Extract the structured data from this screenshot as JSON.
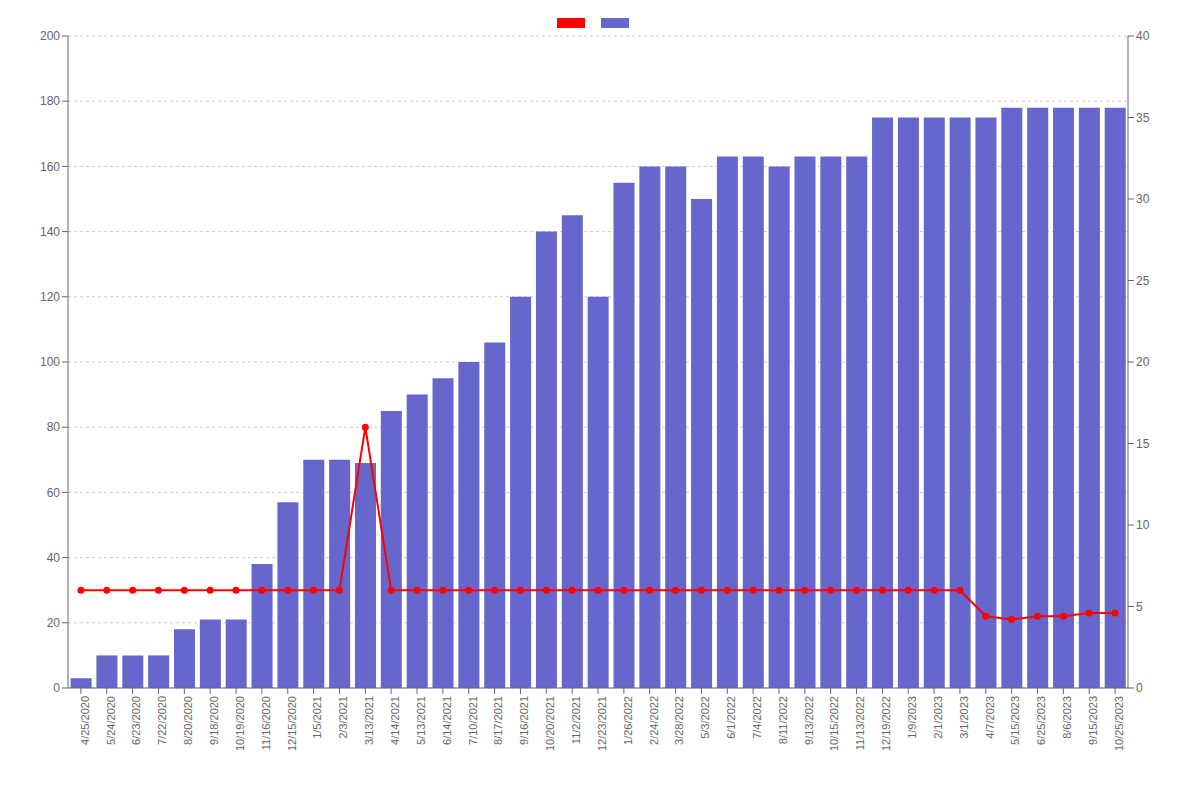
{
  "chart_data": {
    "type": "bar",
    "categories": [
      "4/25/2020",
      "5/24/2020",
      "6/23/2020",
      "7/22/2020",
      "8/20/2020",
      "9/18/2020",
      "10/19/2020",
      "11/16/2020",
      "12/15/2020",
      "1/5/2021",
      "2/3/2021",
      "3/13/2021",
      "4/14/2021",
      "5/13/2021",
      "6/14/2021",
      "7/10/2021",
      "8/17/2021",
      "9/16/2021",
      "10/20/2021",
      "11/2/2021",
      "12/23/2021",
      "1/26/2022",
      "2/24/2022",
      "3/28/2022",
      "5/3/2022",
      "6/1/2022",
      "7/4/2022",
      "8/11/2022",
      "9/13/2022",
      "10/15/2022",
      "11/13/2022",
      "12/19/2022",
      "1/9/2023",
      "2/1/2023",
      "3/1/2023",
      "4/7/2023",
      "5/15/2023",
      "6/25/2023",
      "8/6/2023",
      "9/15/2023",
      "10/25/2023"
    ],
    "series": [
      {
        "type": "bar",
        "color": "#6666cc",
        "values": [
          3,
          10,
          10,
          10,
          18,
          21,
          21,
          38,
          57,
          70,
          70,
          69,
          85,
          90,
          95,
          100,
          106,
          120,
          140,
          145,
          120,
          155,
          160,
          160,
          150,
          163,
          163,
          160,
          163,
          163,
          163,
          175,
          175,
          175,
          175,
          175,
          178,
          178,
          178,
          178,
          178
        ]
      },
      {
        "type": "line",
        "color": "#ff0000",
        "marker": "circle",
        "values": [
          30,
          30,
          30,
          30,
          30,
          30,
          30,
          30,
          30,
          30,
          30,
          80,
          30,
          30,
          30,
          30,
          30,
          30,
          30,
          30,
          30,
          30,
          30,
          30,
          30,
          30,
          30,
          30,
          30,
          30,
          30,
          30,
          30,
          30,
          30,
          22,
          21,
          22,
          22,
          23,
          23
        ]
      }
    ],
    "ylim": [
      0,
      200
    ],
    "yticks": [
      0,
      20,
      40,
      60,
      80,
      100,
      120,
      140,
      160,
      180,
      200
    ],
    "y2lim": [
      0,
      40
    ],
    "y2ticks": [
      0,
      5,
      10,
      15,
      20,
      25,
      30,
      35,
      40
    ],
    "grid": true,
    "legend": "top"
  }
}
